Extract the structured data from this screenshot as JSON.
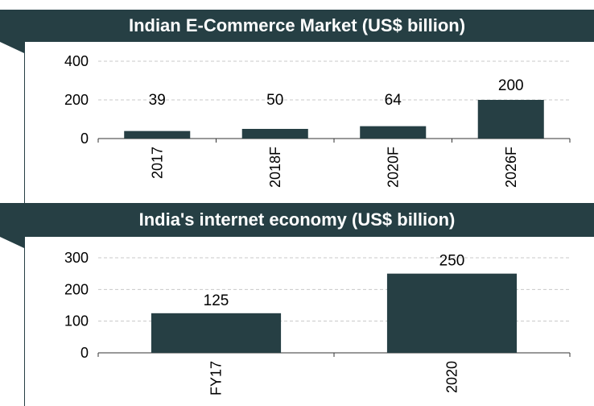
{
  "chart_data": [
    {
      "type": "bar",
      "title": "Indian E-Commerce Market (US$ billion)",
      "categories": [
        "2017",
        "2018F",
        "2020F",
        "2026F"
      ],
      "values": [
        39,
        50,
        64,
        200
      ],
      "ylim": [
        0,
        400
      ],
      "yticks": [
        0,
        200,
        400
      ],
      "grid": true,
      "bar_color": "#263f44"
    },
    {
      "type": "bar",
      "title": "India's internet economy (US$ billion)",
      "categories": [
        "FY17",
        "2020"
      ],
      "values": [
        125,
        250
      ],
      "ylim": [
        0,
        300
      ],
      "yticks": [
        0,
        100,
        200,
        300
      ],
      "grid": true,
      "bar_color": "#263f44"
    }
  ]
}
